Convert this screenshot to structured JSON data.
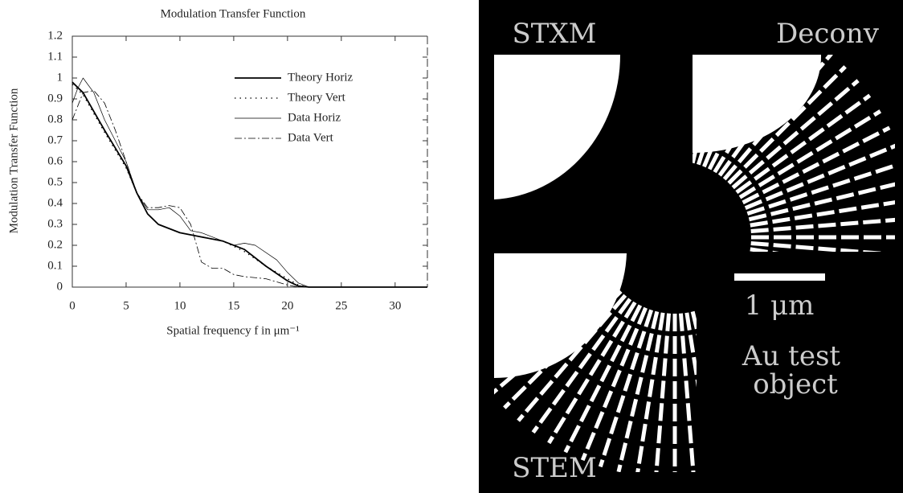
{
  "chart_data": {
    "type": "line",
    "title": "Modulation Transfer Function",
    "x_label": "Spatial frequency f in μm⁻¹",
    "y_label": "Modulation Transfer Function",
    "xlim": [
      0,
      33
    ],
    "ylim": [
      0,
      1.2
    ],
    "xticks": [
      0,
      5,
      10,
      15,
      20,
      25,
      30
    ],
    "yticks": [
      0.0,
      0.1,
      0.2,
      0.3,
      0.4,
      0.5,
      0.6,
      0.7,
      0.8,
      0.9,
      1.0,
      1.1,
      1.2
    ],
    "series": [
      {
        "name": "Theory Horiz",
        "color": "#000",
        "style": "solid",
        "x": [
          0,
          1,
          3,
          5,
          6,
          7,
          8,
          10,
          12,
          14,
          16,
          18,
          20,
          21,
          22,
          33
        ],
        "values": [
          0.98,
          0.93,
          0.75,
          0.58,
          0.45,
          0.35,
          0.3,
          0.26,
          0.24,
          0.22,
          0.18,
          0.1,
          0.03,
          0.005,
          0,
          0
        ]
      },
      {
        "name": "Theory Vert",
        "color": "#000",
        "style": "dotted",
        "x": [
          0,
          1,
          3,
          5,
          6,
          7,
          8,
          10,
          12,
          14,
          16,
          18,
          20,
          21,
          22
        ],
        "values": [
          0.97,
          0.92,
          0.74,
          0.57,
          0.45,
          0.35,
          0.3,
          0.26,
          0.24,
          0.22,
          0.17,
          0.1,
          0.04,
          0.01,
          0
        ]
      },
      {
        "name": "Data Horiz",
        "color": "#000",
        "style": "thin",
        "x": [
          0,
          0.5,
          1,
          2,
          3,
          5,
          6,
          7,
          8,
          9,
          10,
          11,
          12,
          13,
          15,
          16,
          17,
          19,
          20,
          21,
          22
        ],
        "values": [
          0.88,
          0.95,
          1.0,
          0.93,
          0.8,
          0.6,
          0.45,
          0.37,
          0.37,
          0.38,
          0.34,
          0.27,
          0.26,
          0.24,
          0.2,
          0.21,
          0.2,
          0.13,
          0.07,
          0.02,
          0
        ]
      },
      {
        "name": "Data Vert",
        "color": "#000",
        "style": "dashdot",
        "x": [
          0,
          1,
          2,
          3,
          4,
          5,
          6,
          7,
          8,
          9,
          10,
          11,
          12,
          13,
          14,
          15,
          16,
          18,
          20,
          21
        ],
        "values": [
          0.8,
          0.93,
          0.94,
          0.88,
          0.75,
          0.6,
          0.45,
          0.38,
          0.38,
          0.39,
          0.38,
          0.3,
          0.12,
          0.09,
          0.09,
          0.06,
          0.05,
          0.04,
          0.01,
          0
        ]
      }
    ]
  },
  "image_labels": {
    "top_left": "STXM",
    "top_right": "Deconv",
    "bottom_left": "STEM",
    "scale": "1 μm",
    "object_line1": "Au test",
    "object_line2": "object"
  }
}
